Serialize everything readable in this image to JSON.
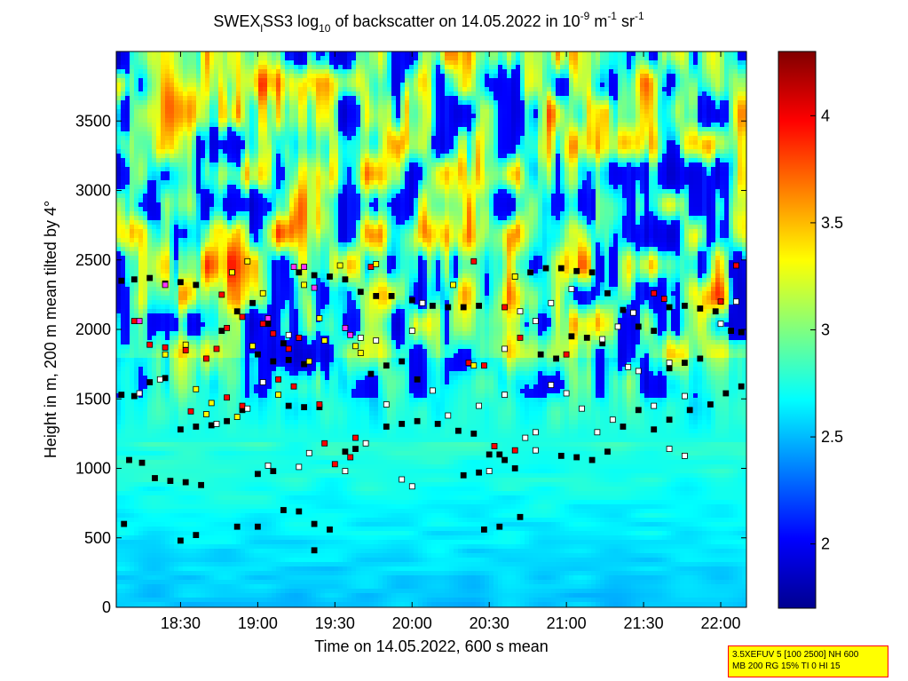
{
  "chart_data": {
    "type": "heatmap",
    "title": {
      "pre": "SWEX",
      "sub": "l",
      "mid": "SS3 log",
      "sub2": "10",
      "post": " of backscatter on 14.05.2022 in 10",
      "sup1": "-9",
      "post2": " m",
      "sup2": "-1",
      "post3": " sr",
      "sup3": "-1"
    },
    "xlabel": "Time on 14.05.2022, 600 s mean",
    "ylabel": "Height in m, 200 m mean tilted by 4°",
    "x_range": [
      "18:05",
      "22:10"
    ],
    "x_ticks": [
      "18:30",
      "19:00",
      "19:30",
      "20:00",
      "20:30",
      "21:00",
      "21:30",
      "22:00"
    ],
    "ylim": [
      0,
      4000
    ],
    "y_ticks": [
      0,
      500,
      1000,
      1500,
      2000,
      2500,
      3000,
      3500
    ],
    "colorbar": {
      "range": [
        1.7,
        4.3
      ],
      "ticks": [
        "2",
        "2.5",
        "3",
        "3.5",
        "4"
      ],
      "colormap": "jet"
    },
    "marker_series": [
      {
        "color": "#000000",
        "points": [
          [
            "18:07",
            2350
          ],
          [
            "18:12",
            2360
          ],
          [
            "18:18",
            2370
          ],
          [
            "18:24",
            2330
          ],
          [
            "18:30",
            2340
          ],
          [
            "18:36",
            2320
          ],
          [
            "18:07",
            1530
          ],
          [
            "18:12",
            1520
          ],
          [
            "18:18",
            1620
          ],
          [
            "18:24",
            1650
          ],
          [
            "18:30",
            1280
          ],
          [
            "18:36",
            1300
          ],
          [
            "18:42",
            1310
          ],
          [
            "18:48",
            1340
          ],
          [
            "18:54",
            1420
          ],
          [
            "18:10",
            1060
          ],
          [
            "18:15",
            1040
          ],
          [
            "18:20",
            930
          ],
          [
            "18:26",
            910
          ],
          [
            "18:32",
            900
          ],
          [
            "18:38",
            880
          ],
          [
            "18:08",
            600
          ],
          [
            "18:30",
            480
          ],
          [
            "18:36",
            520
          ],
          [
            "18:52",
            580
          ],
          [
            "19:00",
            580
          ],
          [
            "19:10",
            700
          ],
          [
            "19:16",
            690
          ],
          [
            "19:22",
            600
          ],
          [
            "19:28",
            560
          ],
          [
            "19:34",
            1120
          ],
          [
            "19:38",
            1140
          ],
          [
            "19:44",
            1680
          ],
          [
            "19:50",
            1740
          ],
          [
            "19:56",
            1770
          ],
          [
            "20:02",
            1640
          ],
          [
            "19:50",
            1300
          ],
          [
            "19:56",
            1320
          ],
          [
            "20:02",
            1340
          ],
          [
            "20:10",
            1320
          ],
          [
            "20:18",
            1270
          ],
          [
            "20:24",
            1250
          ],
          [
            "20:30",
            1100
          ],
          [
            "20:36",
            1060
          ],
          [
            "20:20",
            950
          ],
          [
            "20:26",
            970
          ],
          [
            "20:34",
            1100
          ],
          [
            "20:40",
            1000
          ],
          [
            "20:58",
            1090
          ],
          [
            "21:04",
            1080
          ],
          [
            "21:10",
            1060
          ],
          [
            "21:16",
            1120
          ],
          [
            "21:22",
            1300
          ],
          [
            "21:28",
            1420
          ],
          [
            "21:34",
            1280
          ],
          [
            "21:40",
            1350
          ],
          [
            "21:48",
            1420
          ],
          [
            "21:56",
            1460
          ],
          [
            "22:02",
            1540
          ],
          [
            "22:08",
            1590
          ],
          [
            "20:40",
            2380
          ],
          [
            "20:46",
            2410
          ],
          [
            "20:52",
            2440
          ],
          [
            "20:58",
            2440
          ],
          [
            "21:04",
            2420
          ],
          [
            "21:10",
            2410
          ],
          [
            "21:16",
            2260
          ],
          [
            "21:22",
            2140
          ],
          [
            "21:28",
            2020
          ],
          [
            "21:34",
            1990
          ],
          [
            "21:40",
            2160
          ],
          [
            "21:46",
            2170
          ],
          [
            "21:52",
            2150
          ],
          [
            "21:58",
            2130
          ],
          [
            "22:04",
            1990
          ],
          [
            "22:08",
            1980
          ],
          [
            "21:40",
            1720
          ],
          [
            "21:46",
            1760
          ],
          [
            "21:52",
            1790
          ],
          [
            "20:50",
            1820
          ],
          [
            "20:56",
            1790
          ],
          [
            "21:02",
            1950
          ],
          [
            "21:08",
            1940
          ],
          [
            "21:14",
            1900
          ],
          [
            "20:08",
            2170
          ],
          [
            "20:14",
            2160
          ],
          [
            "20:20",
            2160
          ],
          [
            "20:26",
            2170
          ],
          [
            "19:40",
            2270
          ],
          [
            "19:46",
            2240
          ],
          [
            "19:52",
            2240
          ],
          [
            "20:00",
            2210
          ],
          [
            "19:34",
            2360
          ],
          [
            "19:28",
            2380
          ],
          [
            "19:22",
            2390
          ],
          [
            "19:16",
            2410
          ],
          [
            "19:00",
            1820
          ],
          [
            "19:06",
            1770
          ],
          [
            "19:12",
            1780
          ],
          [
            "19:18",
            1750
          ],
          [
            "18:46",
            1990
          ],
          [
            "18:52",
            2130
          ],
          [
            "18:58",
            2190
          ],
          [
            "19:04",
            2040
          ],
          [
            "19:10",
            1900
          ],
          [
            "19:00",
            960
          ],
          [
            "19:06",
            980
          ],
          [
            "20:28",
            560
          ],
          [
            "20:34",
            580
          ],
          [
            "20:42",
            650
          ],
          [
            "19:22",
            410
          ],
          [
            "19:12",
            1450
          ],
          [
            "19:18",
            1440
          ],
          [
            "19:24",
            1440
          ]
        ]
      },
      {
        "color": "#ff0000",
        "points": [
          [
            "18:12",
            2060
          ],
          [
            "18:18",
            1890
          ],
          [
            "18:24",
            1870
          ],
          [
            "18:32",
            1850
          ],
          [
            "18:40",
            1790
          ],
          [
            "18:44",
            1860
          ],
          [
            "18:48",
            2010
          ],
          [
            "18:54",
            2090
          ],
          [
            "19:02",
            2040
          ],
          [
            "19:06",
            1970
          ],
          [
            "19:12",
            1860
          ],
          [
            "19:16",
            1940
          ],
          [
            "19:26",
            1180
          ],
          [
            "19:30",
            1030
          ],
          [
            "19:36",
            1080
          ],
          [
            "19:24",
            1460
          ],
          [
            "19:38",
            1220
          ],
          [
            "18:48",
            1510
          ],
          [
            "18:54",
            1450
          ],
          [
            "19:08",
            1640
          ],
          [
            "19:14",
            1590
          ],
          [
            "18:34",
            1410
          ],
          [
            "18:46",
            2250
          ],
          [
            "19:44",
            2450
          ],
          [
            "20:22",
            1760
          ],
          [
            "20:28",
            1740
          ],
          [
            "20:32",
            1160
          ],
          [
            "20:40",
            1130
          ],
          [
            "21:34",
            2260
          ],
          [
            "21:38",
            2220
          ],
          [
            "22:00",
            2200
          ],
          [
            "22:06",
            2460
          ],
          [
            "20:24",
            2490
          ],
          [
            "20:36",
            2160
          ],
          [
            "20:42",
            1940
          ],
          [
            "21:00",
            1820
          ]
        ]
      },
      {
        "color": "#ffff00",
        "points": [
          [
            "18:24",
            1820
          ],
          [
            "18:32",
            1890
          ],
          [
            "18:36",
            1570
          ],
          [
            "18:40",
            1390
          ],
          [
            "18:50",
            2410
          ],
          [
            "18:56",
            2490
          ],
          [
            "19:02",
            2260
          ],
          [
            "19:20",
            1770
          ],
          [
            "19:24",
            2080
          ],
          [
            "19:26",
            1920
          ],
          [
            "19:32",
            2460
          ],
          [
            "19:38",
            1880
          ],
          [
            "19:40",
            1830
          ],
          [
            "19:46",
            2470
          ],
          [
            "18:52",
            1370
          ],
          [
            "18:58",
            1880
          ],
          [
            "20:16",
            2320
          ],
          [
            "20:40",
            2380
          ],
          [
            "19:08",
            1530
          ],
          [
            "18:42",
            1470
          ],
          [
            "20:24",
            1740
          ],
          [
            "19:18",
            2320
          ]
        ]
      },
      {
        "color": "#ffffff",
        "points": [
          [
            "18:14",
            1540
          ],
          [
            "18:22",
            1640
          ],
          [
            "18:44",
            1320
          ],
          [
            "18:56",
            1430
          ],
          [
            "19:02",
            1620
          ],
          [
            "19:16",
            1010
          ],
          [
            "19:20",
            1110
          ],
          [
            "19:34",
            980
          ],
          [
            "19:42",
            1180
          ],
          [
            "19:50",
            1460
          ],
          [
            "19:56",
            920
          ],
          [
            "20:00",
            870
          ],
          [
            "20:08",
            1560
          ],
          [
            "20:14",
            1380
          ],
          [
            "20:26",
            1450
          ],
          [
            "20:36",
            1530
          ],
          [
            "20:44",
            1220
          ],
          [
            "20:48",
            1260
          ],
          [
            "20:54",
            1600
          ],
          [
            "21:00",
            1540
          ],
          [
            "21:06",
            1430
          ],
          [
            "21:12",
            1260
          ],
          [
            "21:18",
            1350
          ],
          [
            "21:24",
            1730
          ],
          [
            "21:28",
            1700
          ],
          [
            "21:34",
            1450
          ],
          [
            "21:40",
            1760
          ],
          [
            "21:46",
            1520
          ],
          [
            "20:48",
            2060
          ],
          [
            "20:54",
            2190
          ],
          [
            "21:02",
            2290
          ],
          [
            "21:14",
            1930
          ],
          [
            "21:20",
            2020
          ],
          [
            "21:26",
            2120
          ],
          [
            "22:00",
            2040
          ],
          [
            "22:06",
            2200
          ],
          [
            "19:40",
            1940
          ],
          [
            "19:46",
            1920
          ],
          [
            "20:00",
            1990
          ],
          [
            "19:12",
            1960
          ],
          [
            "20:04",
            2190
          ],
          [
            "20:36",
            1860
          ],
          [
            "20:42",
            2130
          ],
          [
            "21:40",
            1140
          ],
          [
            "21:46",
            1090
          ],
          [
            "20:48",
            1130
          ],
          [
            "20:30",
            980
          ],
          [
            "19:04",
            1020
          ]
        ]
      },
      {
        "color": "#ff33ff",
        "points": [
          [
            "18:14",
            2060
          ],
          [
            "19:04",
            2080
          ],
          [
            "19:18",
            2450
          ],
          [
            "19:22",
            2300
          ],
          [
            "19:34",
            2010
          ],
          [
            "19:14",
            2450
          ],
          [
            "18:24",
            2320
          ],
          [
            "19:36",
            1960
          ]
        ]
      }
    ]
  },
  "info_box": {
    "line1": "3.5XEFUV 5 [100 2500] NH 600",
    "line2": "MB 200 RG 15% TI 0 HI 15"
  }
}
